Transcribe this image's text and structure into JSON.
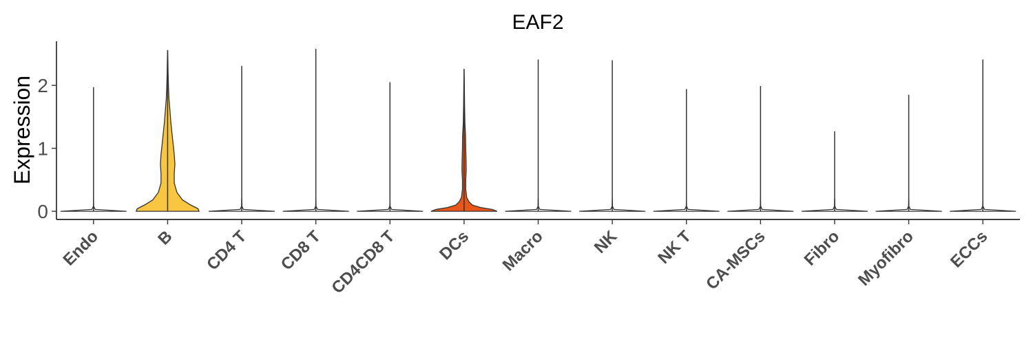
{
  "chart_data": {
    "type": "violin",
    "title": "EAF2",
    "xlabel": "",
    "ylabel": "Expression",
    "ylim": [
      -0.13,
      2.7
    ],
    "yticks": [
      0,
      1,
      2
    ],
    "grid": false,
    "legend": "none",
    "categories": [
      "Endo",
      "B",
      "CD4 T",
      "CD8 T",
      "CD4CD8 T",
      "DCs",
      "Macro",
      "NK",
      "NK T",
      "CA-MSCs",
      "Fibro",
      "Myofibro",
      "ECCs"
    ],
    "series": [
      {
        "max": 1.97,
        "fill": "#ffffff",
        "profile": [
          [
            0,
            1
          ],
          [
            0.03,
            0.05
          ],
          [
            0.08,
            0.005
          ],
          [
            0.2,
            0
          ]
        ]
      },
      {
        "max": 2.56,
        "fill": "#f8c640",
        "profile": [
          [
            0,
            0.95
          ],
          [
            0.04,
            0.92
          ],
          [
            0.1,
            0.7
          ],
          [
            0.18,
            0.45
          ],
          [
            0.3,
            0.28
          ],
          [
            0.45,
            0.2
          ],
          [
            0.6,
            0.2
          ],
          [
            0.75,
            0.22
          ],
          [
            0.9,
            0.2
          ],
          [
            1.05,
            0.17
          ],
          [
            1.2,
            0.14
          ],
          [
            1.4,
            0.1
          ],
          [
            1.6,
            0.07
          ],
          [
            1.8,
            0.04
          ],
          [
            2.0,
            0.025
          ],
          [
            2.2,
            0.015
          ],
          [
            2.4,
            0.008
          ],
          [
            2.56,
            0
          ]
        ]
      },
      {
        "max": 2.31,
        "fill": "#ffffff",
        "profile": [
          [
            0,
            1
          ],
          [
            0.03,
            0.05
          ],
          [
            0.08,
            0.005
          ],
          [
            0.2,
            0
          ]
        ]
      },
      {
        "max": 2.58,
        "fill": "#ffffff",
        "profile": [
          [
            0,
            1
          ],
          [
            0.03,
            0.05
          ],
          [
            0.08,
            0.005
          ],
          [
            0.2,
            0
          ]
        ]
      },
      {
        "max": 2.05,
        "fill": "#ffffff",
        "profile": [
          [
            0,
            1
          ],
          [
            0.03,
            0.05
          ],
          [
            0.08,
            0.005
          ],
          [
            0.2,
            0
          ]
        ]
      },
      {
        "max": 2.26,
        "fill": "#e8561a",
        "profile": [
          [
            0,
            1
          ],
          [
            0.03,
            0.85
          ],
          [
            0.06,
            0.5
          ],
          [
            0.1,
            0.25
          ],
          [
            0.15,
            0.15
          ],
          [
            0.22,
            0.08
          ],
          [
            0.35,
            0.05
          ],
          [
            0.5,
            0.05
          ],
          [
            0.65,
            0.065
          ],
          [
            0.8,
            0.06
          ],
          [
            1.0,
            0.05
          ],
          [
            1.2,
            0.045
          ],
          [
            1.4,
            0.025
          ],
          [
            1.7,
            0.015
          ],
          [
            2.0,
            0.008
          ],
          [
            2.26,
            0
          ]
        ]
      },
      {
        "max": 2.41,
        "fill": "#ffffff",
        "profile": [
          [
            0,
            1
          ],
          [
            0.03,
            0.05
          ],
          [
            0.08,
            0.005
          ],
          [
            0.2,
            0
          ]
        ]
      },
      {
        "max": 2.4,
        "fill": "#ffffff",
        "profile": [
          [
            0,
            1
          ],
          [
            0.03,
            0.05
          ],
          [
            0.08,
            0.005
          ],
          [
            0.2,
            0
          ]
        ]
      },
      {
        "max": 1.94,
        "fill": "#ffffff",
        "profile": [
          [
            0,
            1
          ],
          [
            0.03,
            0.05
          ],
          [
            0.08,
            0.005
          ],
          [
            0.2,
            0
          ]
        ]
      },
      {
        "max": 1.99,
        "fill": "#ffffff",
        "profile": [
          [
            0,
            1
          ],
          [
            0.03,
            0.05
          ],
          [
            0.08,
            0.005
          ],
          [
            0.2,
            0
          ]
        ]
      },
      {
        "max": 1.27,
        "fill": "#ffffff",
        "profile": [
          [
            0,
            1
          ],
          [
            0.03,
            0.05
          ],
          [
            0.08,
            0.005
          ],
          [
            0.2,
            0
          ]
        ]
      },
      {
        "max": 1.85,
        "fill": "#ffffff",
        "profile": [
          [
            0,
            1
          ],
          [
            0.03,
            0.05
          ],
          [
            0.08,
            0.005
          ],
          [
            0.2,
            0
          ]
        ]
      },
      {
        "max": 2.41,
        "fill": "#ffffff",
        "profile": [
          [
            0,
            1
          ],
          [
            0.03,
            0.05
          ],
          [
            0.08,
            0.005
          ],
          [
            0.2,
            0
          ]
        ]
      }
    ]
  }
}
